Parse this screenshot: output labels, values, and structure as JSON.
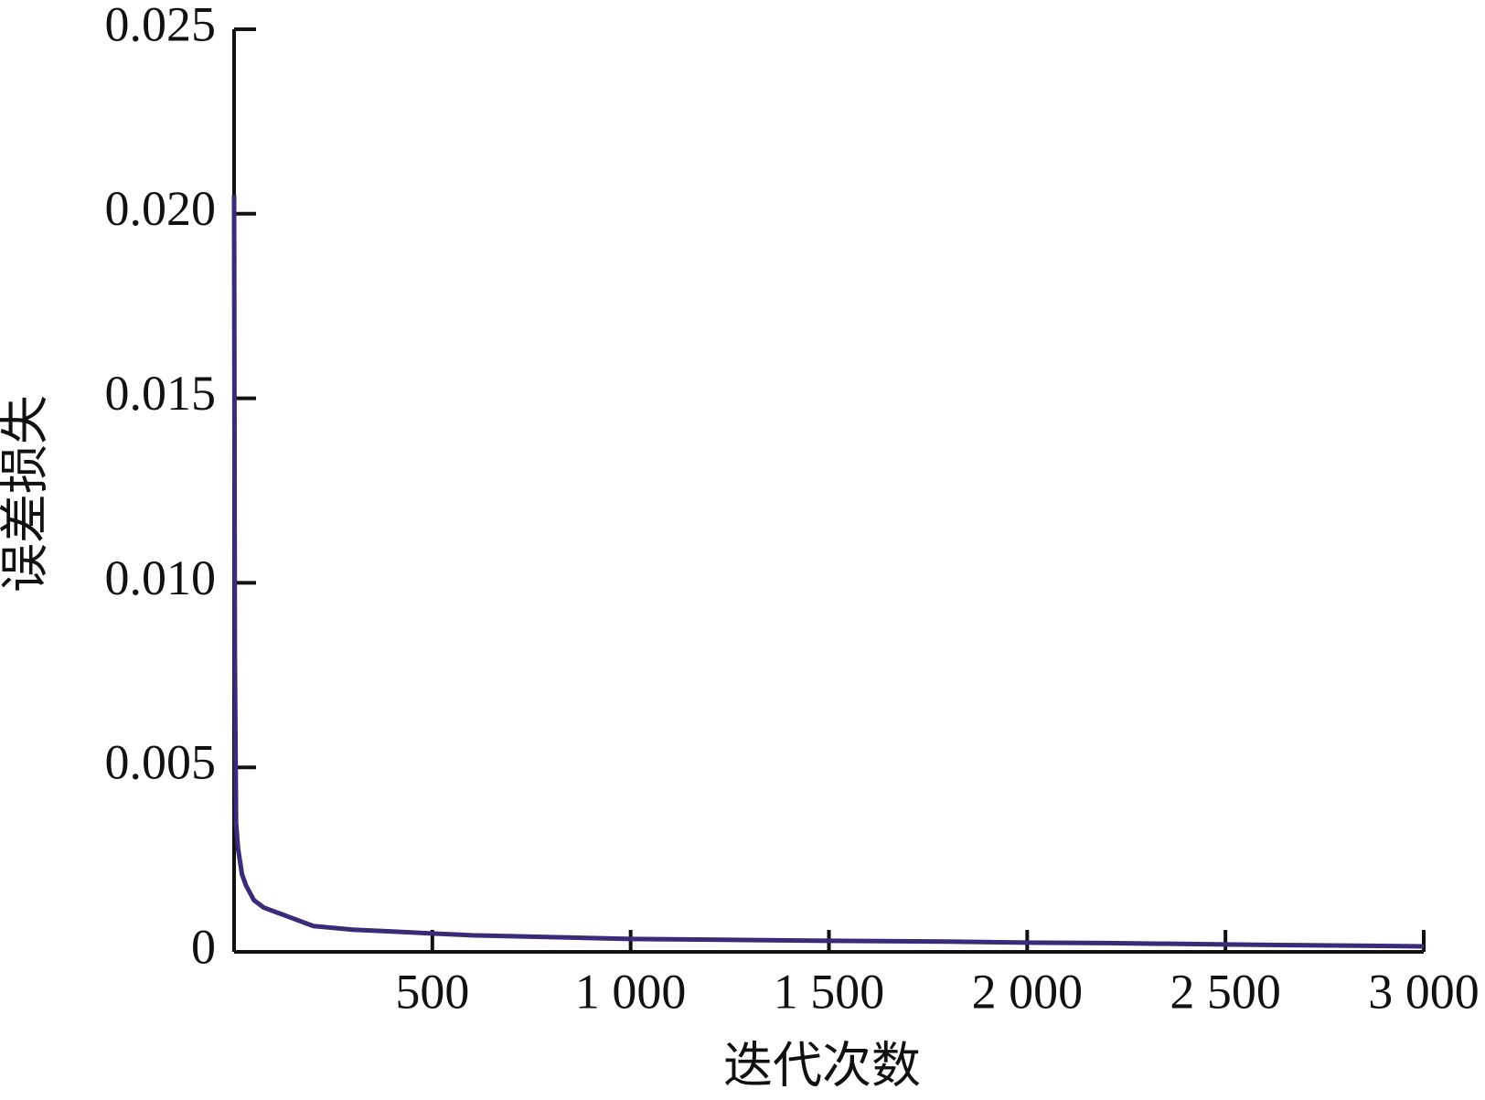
{
  "chart_data": {
    "type": "line",
    "xlabel": "迭代次数",
    "ylabel": "误差损失",
    "series": [
      {
        "color": "#3b2a78",
        "x": [
          0,
          2,
          5,
          10,
          20,
          30,
          50,
          75,
          100,
          150,
          200,
          300,
          400,
          500,
          600,
          800,
          1000,
          1200,
          1500,
          1800,
          2000,
          2200,
          2500,
          2700,
          3000
        ],
        "values": [
          0.0205,
          0.008,
          0.0035,
          0.0028,
          0.0021,
          0.0018,
          0.0014,
          0.0012,
          0.0011,
          0.0009,
          0.0007,
          0.0006,
          0.00055,
          0.0005,
          0.00045,
          0.0004,
          0.00035,
          0.00033,
          0.0003,
          0.00028,
          0.00025,
          0.00024,
          0.0002,
          0.00018,
          0.00015
        ]
      }
    ],
    "xlim": [
      0,
      3000
    ],
    "xticks": [
      500,
      {
        "value": 1000,
        "label": "1 000"
      },
      {
        "value": 1500,
        "label": "1 500"
      },
      {
        "value": 2000,
        "label": "2 000"
      },
      {
        "value": 2500,
        "label": "2 500"
      },
      {
        "value": 3000,
        "label": "3 000"
      }
    ],
    "ylim": [
      0,
      0.025
    ],
    "yticks": [
      0,
      0.005,
      {
        "value": 0.01,
        "label": "0.010"
      },
      0.015,
      {
        "value": 0.02,
        "label": "0.020"
      },
      0.025
    ]
  }
}
